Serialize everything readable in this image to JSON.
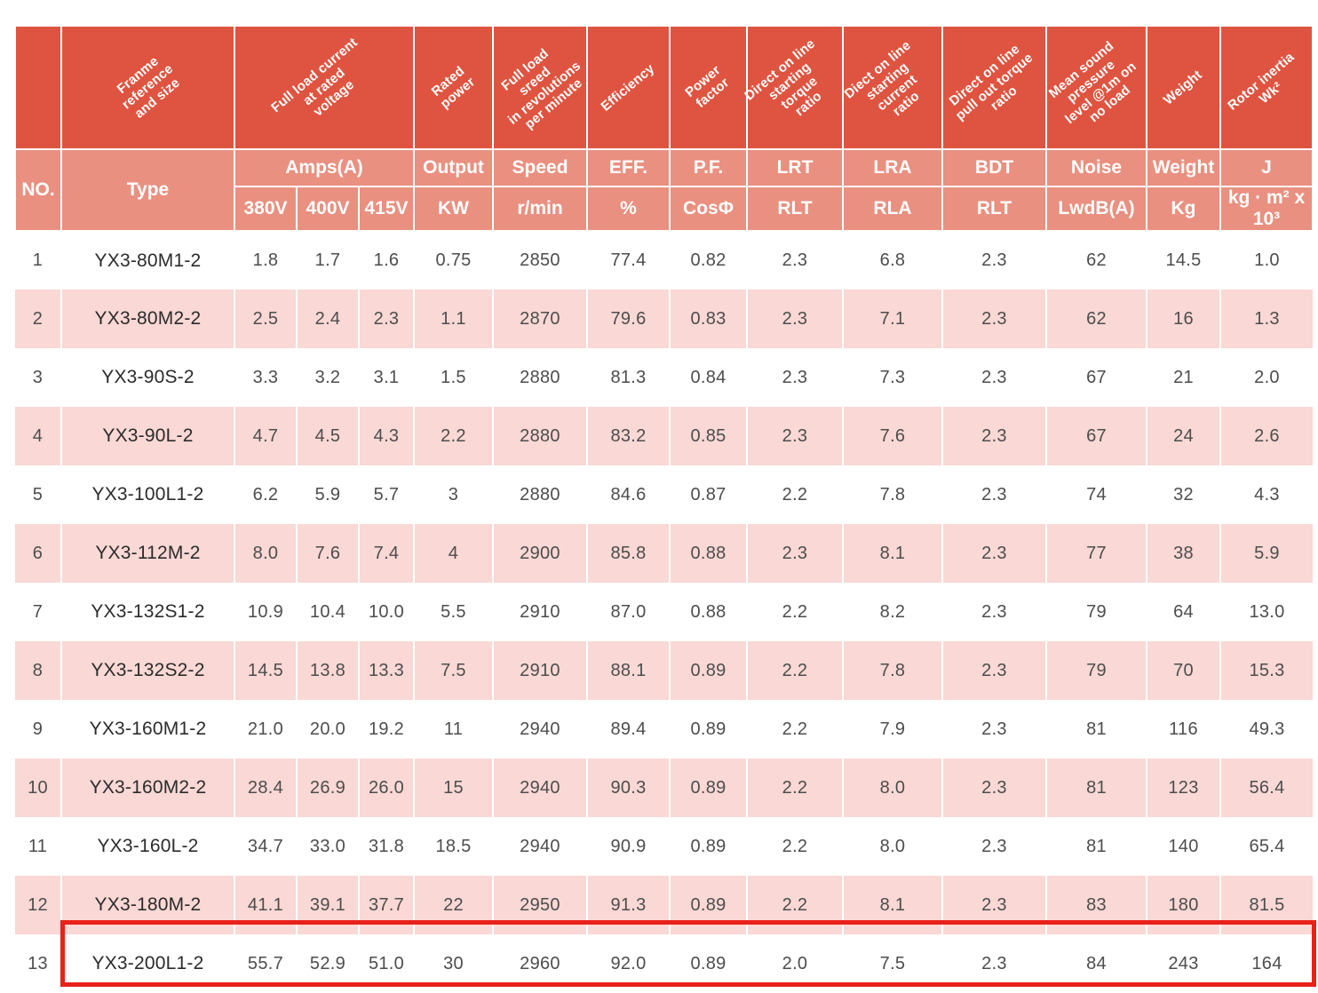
{
  "table": {
    "diagonal_headers": {
      "frame": "Franme\nreference\nand size",
      "amps": "Full load current\nat rated\nvoltage",
      "output": "Rated power",
      "speed": "Full load sreed\nin revolutions\nper minute",
      "eff": "Efficiency",
      "pf": "Power factor",
      "lrt": "Direct on line\nstarting torque\nratio",
      "lra": "Diect on line\nstarting current\nratio",
      "bdt": "Direct on line\npull out torque\nratio",
      "noise": "Mean sound\npressure\nlevel @1m on\nno load",
      "weight": "Weight",
      "rotor_inertia": "Rotor inertia\nWk²"
    },
    "group_headers": {
      "no": "NO.",
      "type": "Type",
      "amps": "Amps(A)",
      "output": "Output",
      "speed": "Speed",
      "eff": "EFF.",
      "pf": "P.F.",
      "lrt": "LRT",
      "lra": "LRA",
      "bdt": "BDT",
      "noise": "Noise",
      "weight": "Weight",
      "j": "J"
    },
    "unit_headers": {
      "v380": "380V",
      "v400": "400V",
      "v415": "415V",
      "kw": "KW",
      "rpm": "r/min",
      "pct": "%",
      "cos": "CosΦ",
      "rlt1": "RLT",
      "rla": "RLA",
      "rlt2": "RLT",
      "lwdb": "LwdB(A)",
      "kg": "Kg",
      "j_unit": "kg · m² x 10³"
    },
    "rows": [
      {
        "no": "1",
        "type": "YX3-80M1-2",
        "a380": "1.8",
        "a400": "1.7",
        "a415": "1.6",
        "kw": "0.75",
        "rpm": "2850",
        "eff": "77.4",
        "pf": "0.82",
        "lrt": "2.3",
        "lra": "6.8",
        "bdt": "2.3",
        "noise": "62",
        "weight": "14.5",
        "j": "1.0"
      },
      {
        "no": "2",
        "type": "YX3-80M2-2",
        "a380": "2.5",
        "a400": "2.4",
        "a415": "2.3",
        "kw": "1.1",
        "rpm": "2870",
        "eff": "79.6",
        "pf": "0.83",
        "lrt": "2.3",
        "lra": "7.1",
        "bdt": "2.3",
        "noise": "62",
        "weight": "16",
        "j": "1.3"
      },
      {
        "no": "3",
        "type": "YX3-90S-2",
        "a380": "3.3",
        "a400": "3.2",
        "a415": "3.1",
        "kw": "1.5",
        "rpm": "2880",
        "eff": "81.3",
        "pf": "0.84",
        "lrt": "2.3",
        "lra": "7.3",
        "bdt": "2.3",
        "noise": "67",
        "weight": "21",
        "j": "2.0"
      },
      {
        "no": "4",
        "type": "YX3-90L-2",
        "a380": "4.7",
        "a400": "4.5",
        "a415": "4.3",
        "kw": "2.2",
        "rpm": "2880",
        "eff": "83.2",
        "pf": "0.85",
        "lrt": "2.3",
        "lra": "7.6",
        "bdt": "2.3",
        "noise": "67",
        "weight": "24",
        "j": "2.6"
      },
      {
        "no": "5",
        "type": "YX3-100L1-2",
        "a380": "6.2",
        "a400": "5.9",
        "a415": "5.7",
        "kw": "3",
        "rpm": "2880",
        "eff": "84.6",
        "pf": "0.87",
        "lrt": "2.2",
        "lra": "7.8",
        "bdt": "2.3",
        "noise": "74",
        "weight": "32",
        "j": "4.3"
      },
      {
        "no": "6",
        "type": "YX3-112M-2",
        "a380": "8.0",
        "a400": "7.6",
        "a415": "7.4",
        "kw": "4",
        "rpm": "2900",
        "eff": "85.8",
        "pf": "0.88",
        "lrt": "2.3",
        "lra": "8.1",
        "bdt": "2.3",
        "noise": "77",
        "weight": "38",
        "j": "5.9"
      },
      {
        "no": "7",
        "type": "YX3-132S1-2",
        "a380": "10.9",
        "a400": "10.4",
        "a415": "10.0",
        "kw": "5.5",
        "rpm": "2910",
        "eff": "87.0",
        "pf": "0.88",
        "lrt": "2.2",
        "lra": "8.2",
        "bdt": "2.3",
        "noise": "79",
        "weight": "64",
        "j": "13.0"
      },
      {
        "no": "8",
        "type": "YX3-132S2-2",
        "a380": "14.5",
        "a400": "13.8",
        "a415": "13.3",
        "kw": "7.5",
        "rpm": "2910",
        "eff": "88.1",
        "pf": "0.89",
        "lrt": "2.2",
        "lra": "7.8",
        "bdt": "2.3",
        "noise": "79",
        "weight": "70",
        "j": "15.3"
      },
      {
        "no": "9",
        "type": "YX3-160M1-2",
        "a380": "21.0",
        "a400": "20.0",
        "a415": "19.2",
        "kw": "11",
        "rpm": "2940",
        "eff": "89.4",
        "pf": "0.89",
        "lrt": "2.2",
        "lra": "7.9",
        "bdt": "2.3",
        "noise": "81",
        "weight": "116",
        "j": "49.3"
      },
      {
        "no": "10",
        "type": "YX3-160M2-2",
        "a380": "28.4",
        "a400": "26.9",
        "a415": "26.0",
        "kw": "15",
        "rpm": "2940",
        "eff": "90.3",
        "pf": "0.89",
        "lrt": "2.2",
        "lra": "8.0",
        "bdt": "2.3",
        "noise": "81",
        "weight": "123",
        "j": "56.4"
      },
      {
        "no": "11",
        "type": "YX3-160L-2",
        "a380": "34.7",
        "a400": "33.0",
        "a415": "31.8",
        "kw": "18.5",
        "rpm": "2940",
        "eff": "90.9",
        "pf": "0.89",
        "lrt": "2.2",
        "lra": "8.0",
        "bdt": "2.3",
        "noise": "81",
        "weight": "140",
        "j": "65.4"
      },
      {
        "no": "12",
        "type": "YX3-180M-2",
        "a380": "41.1",
        "a400": "39.1",
        "a415": "37.7",
        "kw": "22",
        "rpm": "2950",
        "eff": "91.3",
        "pf": "0.89",
        "lrt": "2.2",
        "lra": "8.1",
        "bdt": "2.3",
        "noise": "83",
        "weight": "180",
        "j": "81.5"
      },
      {
        "no": "13",
        "type": "YX3-200L1-2",
        "a380": "55.7",
        "a400": "52.9",
        "a415": "51.0",
        "kw": "30",
        "rpm": "2960",
        "eff": "92.0",
        "pf": "0.89",
        "lrt": "2.0",
        "lra": "7.5",
        "bdt": "2.3",
        "noise": "84",
        "weight": "243",
        "j": "164"
      }
    ]
  },
  "highlight": {
    "highlighted_row_no": "13",
    "border_color": "#e8211a"
  },
  "colors": {
    "header_red": "#df5440",
    "subheader_salmon": "#e99080",
    "row_pink": "#f9d8d5",
    "row_white": "#ffffff",
    "data_text": "#4d4d4d"
  }
}
